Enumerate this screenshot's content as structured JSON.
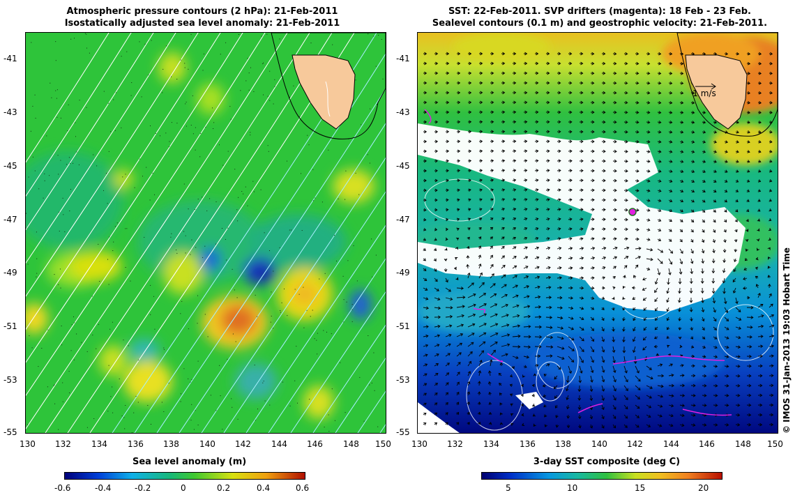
{
  "left_panel": {
    "title_line1": "Atmospheric pressure contours (2 hPa): 21-Feb-2011",
    "title_line2": "Isostatically adjusted sea level anomaly: 21-Feb-2011",
    "y_ticks": [
      "-41",
      "-43",
      "-45",
      "-47",
      "-49",
      "-51",
      "-53",
      "-55"
    ],
    "x_ticks": [
      "130",
      "132",
      "134",
      "136",
      "138",
      "140",
      "142",
      "144",
      "146",
      "148",
      "150"
    ],
    "colorbar_label": "Sea level anomaly (m)",
    "colorbar_ticks": [
      "-0.6",
      "-0.4",
      "-0.2",
      "0",
      "0.2",
      "0.4",
      "0.6"
    ]
  },
  "right_panel": {
    "title_line1": "SST: 22-Feb-2011. SVP drifters (magenta): 18 Feb - 23 Feb.",
    "title_line2": "Sealevel contours (0.1 m) and geostrophic velocity: 21-Feb-2011.",
    "y_ticks": [
      "-41",
      "-43",
      "-45",
      "-47",
      "-49",
      "-51",
      "-53",
      "-55"
    ],
    "x_ticks": [
      "130",
      "132",
      "134",
      "136",
      "138",
      "140",
      "142",
      "144",
      "146",
      "148",
      "150"
    ],
    "velocity_scale_label": "1 m/s",
    "colorbar_label": "3-day SST composite (deg C)",
    "colorbar_ticks": [
      "5",
      "10",
      "15",
      "20"
    ]
  },
  "credit": "© IMOS 31-Jan-2013 19:03 Hobart Time",
  "colors": {
    "land": "#f7c99b",
    "slev_low": "#0020a0",
    "slev_mid": "#1fbf3f",
    "slev_high": "#d02000",
    "sst_low": "#000080",
    "sst_high": "#c81000",
    "drifter": "#e020e0"
  }
}
